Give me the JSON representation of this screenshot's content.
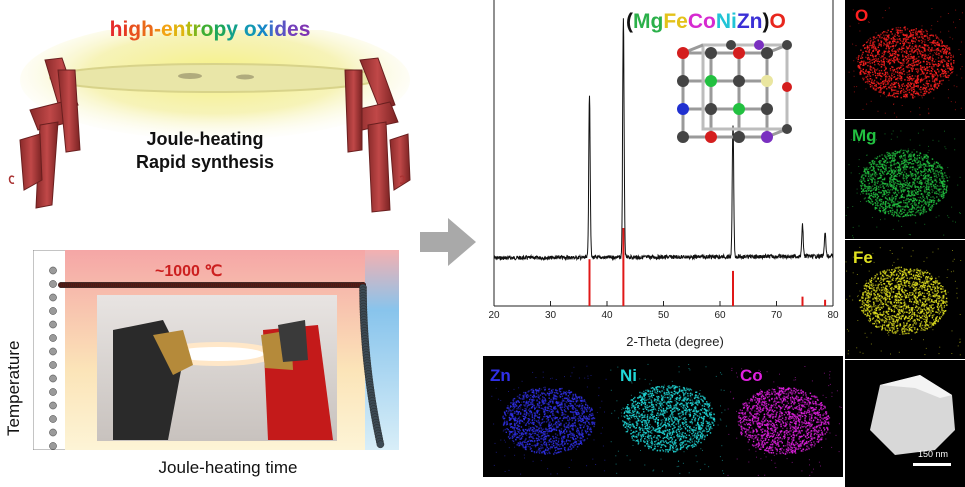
{
  "top_panel": {
    "title_letters": [
      {
        "ch": "h",
        "color": "#e52b2b"
      },
      {
        "ch": "i",
        "color": "#e53a22"
      },
      {
        "ch": "g",
        "color": "#e8511d"
      },
      {
        "ch": "h",
        "color": "#ea6a1a"
      },
      {
        "ch": "-",
        "color": "#ef8a16"
      },
      {
        "ch": "e",
        "color": "#f2a313"
      },
      {
        "ch": "n",
        "color": "#e0b40f"
      },
      {
        "ch": "t",
        "color": "#b6bb10"
      },
      {
        "ch": "r",
        "color": "#7fb51c"
      },
      {
        "ch": "o",
        "color": "#3fae33"
      },
      {
        "ch": "p",
        "color": "#1da65a"
      },
      {
        "ch": "y",
        "color": "#12a08a"
      },
      {
        "ch": " ",
        "color": "#000000"
      },
      {
        "ch": "o",
        "color": "#1398b3"
      },
      {
        "ch": "x",
        "color": "#1787c7"
      },
      {
        "ch": "i",
        "color": "#3a6fca"
      },
      {
        "ch": "d",
        "color": "#5a53c4"
      },
      {
        "ch": "e",
        "color": "#7440bb"
      },
      {
        "ch": "s",
        "color": "#7f35b3"
      }
    ],
    "line1": "Joule-heating",
    "line2": "Rapid synthesis"
  },
  "temperature_panel": {
    "peak_label": "~1000 ℃",
    "ylabel": "Temperature",
    "xlabel": "Joule-heating time"
  },
  "xrd_panel": {
    "formula_parts": [
      {
        "text": "(",
        "color": "#111111"
      },
      {
        "text": "Mg",
        "color": "#2bb04a"
      },
      {
        "text": "Fe",
        "color": "#e3c21a"
      },
      {
        "text": "Co",
        "color": "#d62ad0"
      },
      {
        "text": "Ni",
        "color": "#21c4d6"
      },
      {
        "text": "Zn",
        "color": "#3a2fd6"
      },
      {
        "text": ")",
        "color": "#111111"
      },
      {
        "text": "O",
        "color": "#e8261d"
      }
    ],
    "xlabel": "2-Theta (degree)",
    "xticks": [
      "20",
      "30",
      "40",
      "50",
      "60",
      "70",
      "80"
    ]
  },
  "chart_data": {
    "type": "line",
    "xlabel": "2-Theta (degree)",
    "ylabel": "",
    "xlim": [
      20,
      80
    ],
    "series": [
      {
        "peaks_2theta": [
          36.9,
          42.9,
          62.3,
          74.6,
          78.6
        ],
        "relative_intensity": [
          0.68,
          1.0,
          0.55,
          0.13,
          0.1
        ]
      }
    ],
    "reference_lines_2theta": [
      36.9,
      42.9,
      62.3,
      74.6,
      78.6
    ],
    "reference_relative_intensity": [
      0.6,
      1.0,
      0.45,
      0.12,
      0.08
    ]
  },
  "maps": {
    "o": {
      "label": "O",
      "color": "#ff2020"
    },
    "mg": {
      "label": "Mg",
      "color": "#22c040"
    },
    "fe": {
      "label": "Fe",
      "color": "#e0e020"
    },
    "zn": {
      "label": "Zn",
      "color": "#3030e8"
    },
    "ni": {
      "label": "Ni",
      "color": "#20d8d8"
    },
    "co": {
      "label": "Co",
      "color": "#e020e0"
    },
    "scale_bar": "150 nm"
  }
}
